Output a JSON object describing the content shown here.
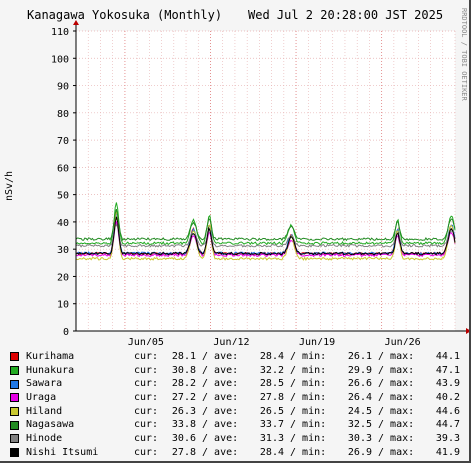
{
  "header": {
    "title": "Kanagawa Yokosuka (Monthly)",
    "timestamp": "Wed Jul  2 20:28:00 JST 2025"
  },
  "credit": "RRDTOOL / TOBI OETIKER",
  "labels": {
    "cur": "cur:",
    "ave": "ave:",
    "min": "min:",
    "max": "max:",
    "sep": "/"
  },
  "chart_data": {
    "type": "line",
    "ylabel": "nSv/h",
    "ylim": [
      0,
      110
    ],
    "yticks": [
      0,
      10,
      20,
      30,
      40,
      50,
      60,
      70,
      80,
      90,
      100,
      110
    ],
    "xlim": [
      "2025-06-01",
      "2025-07-02"
    ],
    "xticks": [
      {
        "label": "Jun/05",
        "date": "2025-06-05"
      },
      {
        "label": "Jun/12",
        "date": "2025-06-12"
      },
      {
        "label": "Jun/19",
        "date": "2025-06-19"
      },
      {
        "label": "Jun/26",
        "date": "2025-06-26"
      }
    ],
    "grid": true,
    "series": [
      {
        "name": "Kurihama",
        "color": "#dd0000",
        "cur": 28.1,
        "ave": 28.4,
        "min": 26.1,
        "max": 44.1
      },
      {
        "name": "Hunakura",
        "color": "#22aa22",
        "cur": 30.8,
        "ave": 32.2,
        "min": 29.9,
        "max": 47.1
      },
      {
        "name": "Sawara",
        "color": "#1e78e6",
        "cur": 28.2,
        "ave": 28.5,
        "min": 26.6,
        "max": 43.9
      },
      {
        "name": "Uraga",
        "color": "#e600e6",
        "cur": 27.2,
        "ave": 27.8,
        "min": 26.4,
        "max": 40.2
      },
      {
        "name": "Hiland",
        "color": "#c8c830",
        "cur": 26.3,
        "ave": 26.5,
        "min": 24.5,
        "max": 44.6
      },
      {
        "name": "Nagasawa",
        "color": "#228b22",
        "cur": 33.8,
        "ave": 33.7,
        "min": 32.5,
        "max": 44.7
      },
      {
        "name": "Hinode",
        "color": "#808080",
        "cur": 30.6,
        "ave": 31.3,
        "min": 30.3,
        "max": 39.3
      },
      {
        "name": "Nishi Itsumi",
        "color": "#000000",
        "cur": 27.8,
        "ave": 28.4,
        "min": 26.9,
        "max": 41.9
      }
    ]
  }
}
